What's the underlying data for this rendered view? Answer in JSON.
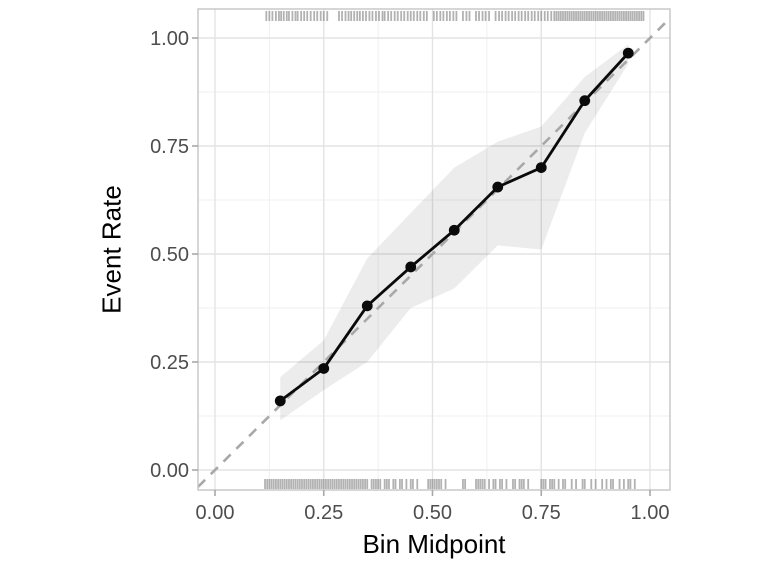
{
  "figure": {
    "background": "#ffffff"
  },
  "chart_data": {
    "type": "line",
    "title": "",
    "xlabel": "Bin Midpoint",
    "ylabel": "Event Rate",
    "xlim": [
      -0.04,
      1.05
    ],
    "ylim": [
      -0.05,
      1.07
    ],
    "grid": "major+minor",
    "legend": "none",
    "x_ticks": {
      "values": [
        0,
        0.25,
        0.5,
        0.75,
        1.0
      ],
      "labels": [
        "0.00",
        "0.25",
        "0.50",
        "0.75",
        "1.00"
      ]
    },
    "y_ticks": {
      "values": [
        0,
        0.25,
        0.5,
        0.75,
        1.0
      ],
      "labels": [
        "0.00",
        "0.25",
        "0.50",
        "0.75",
        "1.00"
      ]
    },
    "minor_gridlines": [
      0.125,
      0.375,
      0.625,
      0.875
    ],
    "series": [
      {
        "name": "observed-event-rate",
        "type": "line+points",
        "x": [
          0.15,
          0.25,
          0.35,
          0.45,
          0.55,
          0.65,
          0.75,
          0.85,
          0.95
        ],
        "y": [
          0.16,
          0.235,
          0.38,
          0.47,
          0.555,
          0.655,
          0.7,
          0.855,
          0.965
        ]
      },
      {
        "name": "confidence-band",
        "type": "ribbon",
        "x": [
          0.15,
          0.25,
          0.35,
          0.45,
          0.55,
          0.65,
          0.75,
          0.85,
          0.95
        ],
        "lower": [
          0.115,
          0.185,
          0.25,
          0.375,
          0.42,
          0.52,
          0.51,
          0.78,
          0.94
        ],
        "upper": [
          0.215,
          0.3,
          0.49,
          0.595,
          0.7,
          0.76,
          0.795,
          0.91,
          0.985
        ]
      },
      {
        "name": "perfect-calibration-reference",
        "type": "dashed-line",
        "x": [
          0,
          1
        ],
        "y": [
          0,
          1
        ]
      }
    ],
    "rug_top": [
      0.118,
      0.125,
      0.132,
      0.14,
      0.147,
      0.152,
      0.158,
      0.165,
      0.17,
      0.178,
      0.185,
      0.19,
      0.198,
      0.205,
      0.212,
      0.22,
      0.228,
      0.235,
      0.243,
      0.25,
      0.258,
      0.285,
      0.292,
      0.3,
      0.307,
      0.313,
      0.32,
      0.327,
      0.333,
      0.34,
      0.347,
      0.355,
      0.362,
      0.37,
      0.377,
      0.385,
      0.39,
      0.398,
      0.405,
      0.413,
      0.42,
      0.428,
      0.435,
      0.443,
      0.45,
      0.457,
      0.465,
      0.472,
      0.48,
      0.487,
      0.503,
      0.51,
      0.518,
      0.525,
      0.533,
      0.54,
      0.548,
      0.555,
      0.57,
      0.578,
      0.585,
      0.6,
      0.607,
      0.615,
      0.622,
      0.63,
      0.645,
      0.653,
      0.66,
      0.668,
      0.675,
      0.683,
      0.69,
      0.698,
      0.705,
      0.713,
      0.72,
      0.728,
      0.735,
      0.743,
      0.75,
      0.758,
      0.765,
      0.773,
      0.78,
      0.785,
      0.79,
      0.795,
      0.8,
      0.805,
      0.81,
      0.815,
      0.82,
      0.825,
      0.83,
      0.835,
      0.84,
      0.845,
      0.85,
      0.855,
      0.86,
      0.865,
      0.87,
      0.875,
      0.88,
      0.885,
      0.89,
      0.895,
      0.9,
      0.905,
      0.91,
      0.915,
      0.92,
      0.925,
      0.93,
      0.935,
      0.94,
      0.945,
      0.95,
      0.955,
      0.96,
      0.965,
      0.97,
      0.975,
      0.98,
      0.985
    ],
    "rug_bottom": [
      0.115,
      0.12,
      0.125,
      0.13,
      0.135,
      0.14,
      0.145,
      0.15,
      0.155,
      0.16,
      0.165,
      0.17,
      0.175,
      0.18,
      0.185,
      0.19,
      0.195,
      0.2,
      0.205,
      0.21,
      0.215,
      0.22,
      0.225,
      0.23,
      0.235,
      0.24,
      0.245,
      0.25,
      0.255,
      0.26,
      0.265,
      0.27,
      0.275,
      0.28,
      0.285,
      0.29,
      0.295,
      0.3,
      0.305,
      0.31,
      0.315,
      0.32,
      0.325,
      0.33,
      0.335,
      0.34,
      0.345,
      0.35,
      0.36,
      0.365,
      0.37,
      0.375,
      0.38,
      0.39,
      0.395,
      0.4,
      0.41,
      0.415,
      0.425,
      0.43,
      0.44,
      0.45,
      0.455,
      0.465,
      0.49,
      0.495,
      0.5,
      0.505,
      0.51,
      0.515,
      0.52,
      0.53,
      0.57,
      0.575,
      0.6,
      0.605,
      0.61,
      0.615,
      0.62,
      0.63,
      0.64,
      0.645,
      0.655,
      0.66,
      0.67,
      0.685,
      0.69,
      0.7,
      0.705,
      0.71,
      0.72,
      0.75,
      0.755,
      0.76,
      0.77,
      0.775,
      0.78,
      0.79,
      0.8,
      0.805,
      0.82,
      0.83,
      0.845,
      0.85,
      0.865,
      0.875,
      0.89,
      0.9,
      0.91,
      0.915,
      0.93,
      0.94,
      0.95,
      0.955,
      0.965
    ],
    "colors": {
      "line": "#0a0a0a",
      "point": "#0a0a0a",
      "ribbon_fill": "rgba(0,0,0,0.075)",
      "reference": "#a8a8a8",
      "grid_major": "#e3e3e3",
      "grid_minor": "#efefef",
      "panel_border": "#c4c4c4",
      "axis_tick": "#a9a9a9",
      "tick_label": "#4d4d4d",
      "axis_title": "#000000",
      "rug": "#7f7f7f"
    }
  }
}
